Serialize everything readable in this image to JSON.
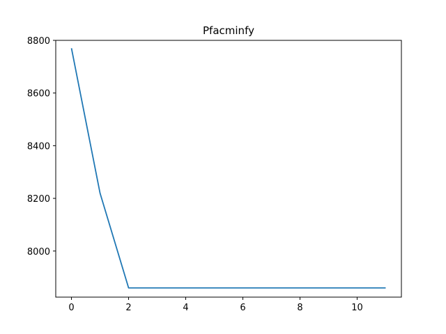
{
  "chart_data": {
    "type": "line",
    "title": "Pfacminfy",
    "xlabel": "",
    "ylabel": "",
    "xlim": [
      -0.55,
      11.55
    ],
    "ylim": [
      7825,
      8800
    ],
    "x_ticks": [
      0,
      2,
      4,
      6,
      8,
      10
    ],
    "y_ticks": [
      8000,
      8200,
      8400,
      8600,
      8800
    ],
    "grid": false,
    "series": [
      {
        "color": "#1f77b4",
        "x": [
          0,
          1,
          2,
          3,
          4,
          5,
          6,
          7,
          8,
          9,
          10,
          11
        ],
        "y": [
          8770,
          8220,
          7860,
          7860,
          7860,
          7860,
          7860,
          7860,
          7860,
          7860,
          7860,
          7860
        ]
      }
    ]
  }
}
